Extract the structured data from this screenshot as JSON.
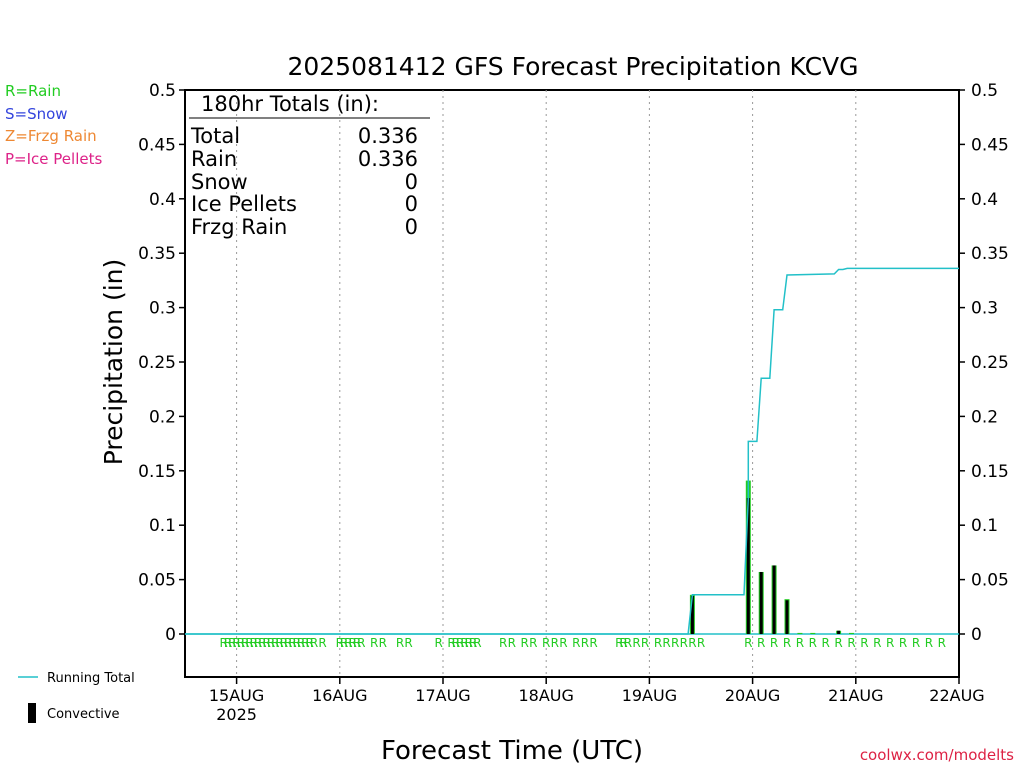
{
  "title": "2025081412 GFS Forecast Precipitation KCVG",
  "legend_types": [
    {
      "text": "R=Rain",
      "color": "#22cc22"
    },
    {
      "text": "S=Snow",
      "color": "#3344dd"
    },
    {
      "text": "Z=Frzg Rain",
      "color": "#ee8833"
    },
    {
      "text": "P=Ice Pellets",
      "color": "#dd2288"
    }
  ],
  "totals": {
    "header": "180hr Totals (in):",
    "rows": [
      {
        "label": "Total",
        "value": "0.336"
      },
      {
        "label": "Rain",
        "value": "0.336"
      },
      {
        "label": "Snow",
        "value": "0"
      },
      {
        "label": "Ice Pellets",
        "value": "0"
      },
      {
        "label": "Frzg Rain",
        "value": "0"
      }
    ]
  },
  "bottom_legend": {
    "running_total": "Running Total",
    "convective": "Convective"
  },
  "credit": "coolwx.com/modelts",
  "colors": {
    "running_total": "#22c0c8",
    "rain": "#22cc22",
    "convective": "#000000",
    "credit": "#dd2244"
  },
  "chart_data": {
    "type": "bar",
    "title": "2025081412 GFS Forecast Precipitation KCVG",
    "xlabel": "Forecast Time (UTC)",
    "ylabel": "Precipitation (in)",
    "ylim": [
      0,
      0.5
    ],
    "y_ticks": [
      "0",
      "0.05",
      "0.1",
      "0.15",
      "0.2",
      "0.25",
      "0.3",
      "0.35",
      "0.4",
      "0.45",
      "0.5"
    ],
    "x_units": "forecast hour",
    "xlim": [
      0,
      180
    ],
    "x_ticks": [
      {
        "hour": 12,
        "label": "15AUG",
        "sub": "2025"
      },
      {
        "hour": 36,
        "label": "16AUG"
      },
      {
        "hour": 60,
        "label": "17AUG"
      },
      {
        "hour": 84,
        "label": "18AUG"
      },
      {
        "hour": 108,
        "label": "19AUG"
      },
      {
        "hour": 132,
        "label": "20AUG"
      },
      {
        "hour": 156,
        "label": "21AUG"
      },
      {
        "hour": 180,
        "label": "22AUG"
      }
    ],
    "grid": "vertical dotted",
    "series": [
      {
        "name": "Running Total",
        "kind": "step-line",
        "points": [
          [
            0,
            0
          ],
          [
            117,
            0
          ],
          [
            118,
            0.036
          ],
          [
            130,
            0.036
          ],
          [
            131,
            0.125
          ],
          [
            131,
            0.177
          ],
          [
            133,
            0.177
          ],
          [
            134,
            0.235
          ],
          [
            136,
            0.235
          ],
          [
            137,
            0.298
          ],
          [
            139,
            0.298
          ],
          [
            140,
            0.33
          ],
          [
            151,
            0.331
          ],
          [
            152,
            0.335
          ],
          [
            153,
            0.335
          ],
          [
            154,
            0.336
          ],
          [
            180,
            0.336
          ]
        ]
      },
      {
        "name": "Rain",
        "kind": "bars",
        "bars": [
          {
            "hour": 118,
            "value": 0.036
          },
          {
            "hour": 131,
            "value": 0.141
          },
          {
            "hour": 134,
            "value": 0.057
          },
          {
            "hour": 137,
            "value": 0.063
          },
          {
            "hour": 140,
            "value": 0.032
          },
          {
            "hour": 143,
            "value": 0.001
          },
          {
            "hour": 146,
            "value": 0.001
          },
          {
            "hour": 152,
            "value": 0.003
          },
          {
            "hour": 155,
            "value": 0.001
          }
        ]
      },
      {
        "name": "Convective",
        "kind": "bars",
        "bars": [
          {
            "hour": 118,
            "value": 0.035
          },
          {
            "hour": 131,
            "value": 0.125
          },
          {
            "hour": 134,
            "value": 0.057
          },
          {
            "hour": 137,
            "value": 0.063
          },
          {
            "hour": 140,
            "value": 0.031
          },
          {
            "hour": 152,
            "value": 0.003
          }
        ]
      }
    ],
    "type_markers": {
      "symbol": "R",
      "hours": [
        9,
        10,
        11,
        12,
        13,
        14,
        15,
        16,
        17,
        18,
        19,
        20,
        21,
        22,
        23,
        24,
        25,
        26,
        27,
        28,
        29,
        30,
        32,
        36,
        37,
        38,
        39,
        40,
        41,
        44,
        46,
        50,
        52,
        59,
        62,
        63,
        64,
        65,
        66,
        67,
        68,
        74,
        76,
        79,
        81,
        84,
        86,
        88,
        91,
        93,
        95,
        101,
        102,
        103,
        105,
        107,
        110,
        112,
        114,
        116,
        118,
        120,
        131,
        134,
        137,
        140,
        143,
        146,
        149,
        152,
        155,
        158,
        161,
        164,
        167,
        170,
        173,
        176
      ]
    }
  }
}
